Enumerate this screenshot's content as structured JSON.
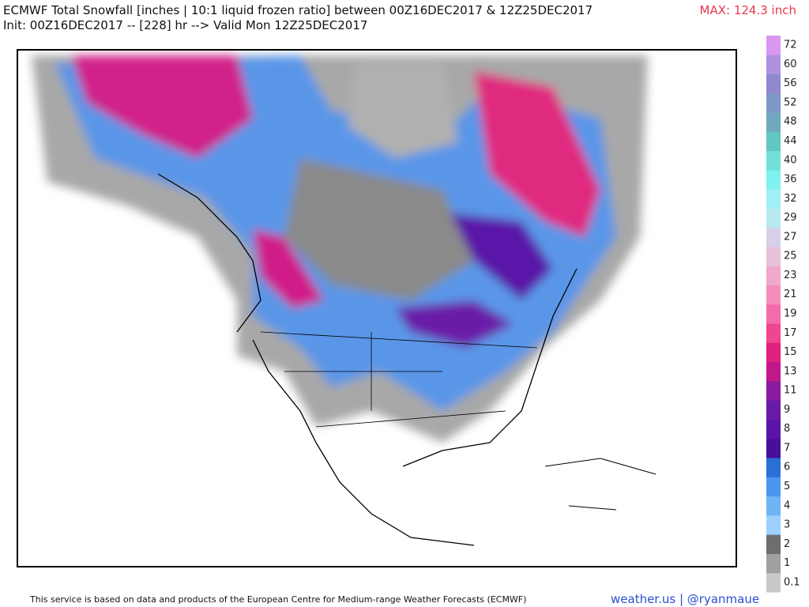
{
  "header": {
    "title": "ECMWF Total Snowfall [inches | 10:1 liquid frozen ratio] between 00Z16DEC2017 & 12Z25DEC2017",
    "subtitle": "Init: 00Z16DEC2017 -- [228] hr --> Valid Mon 12Z25DEC2017",
    "max_label": "MAX: 124.3 inch"
  },
  "legend": {
    "labels": [
      "0.1",
      "1",
      "2",
      "3",
      "4",
      "5",
      "6",
      "7",
      "8",
      "9",
      "11",
      "13",
      "15",
      "17",
      "19",
      "21",
      "23",
      "25",
      "27",
      "29",
      "32",
      "36",
      "40",
      "44",
      "48",
      "52",
      "56",
      "60",
      "72"
    ],
    "colors": [
      "#c8c8c8",
      "#a0a0a0",
      "#6e6e6e",
      "#9ed0ff",
      "#6fb4f5",
      "#4a96ee",
      "#2a6fd8",
      "#4a0f9a",
      "#5a15a8",
      "#6a1aa8",
      "#8a1aa0",
      "#c0188a",
      "#e0207f",
      "#f04590",
      "#f56aa8",
      "#f58cbc",
      "#f0a8cc",
      "#e8c0dc",
      "#d8d0e8",
      "#b8e8f0",
      "#a0f0f8",
      "#80f0f0",
      "#70e0d8",
      "#60c8c0",
      "#70a8c0",
      "#8098c8",
      "#9088d0",
      "#b090e0",
      "#d898f0"
    ]
  },
  "footer": {
    "credit": "This service is based on data and products of the European Centre for Medium-range Weather Forecasts (ECMWF)",
    "brand": "weather.us | @ryanmaue"
  }
}
